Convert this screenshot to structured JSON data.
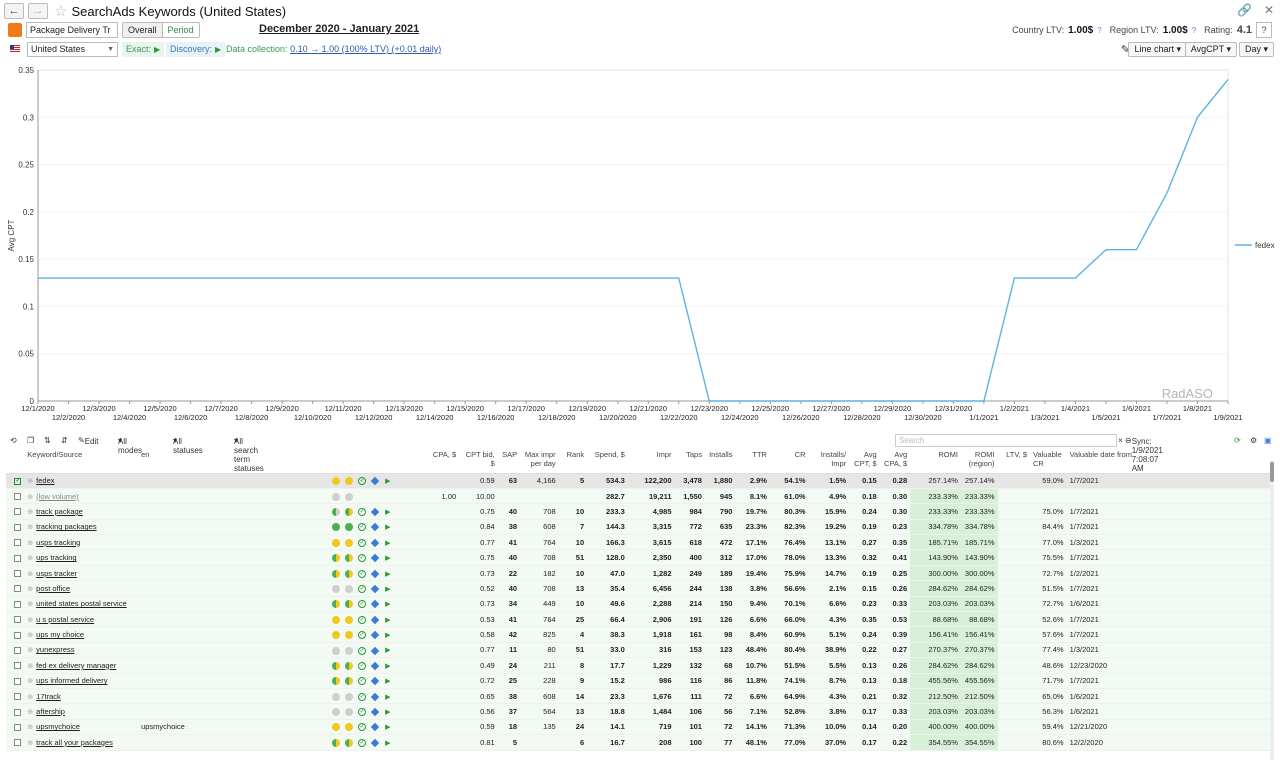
{
  "window": {
    "title": "SearchAds Keywords (United States)"
  },
  "header": {
    "app_selector": "Package Delivery Tr",
    "view_overall": "Overall",
    "view_period": "Period",
    "date_range": "December 2020 - January 2021",
    "country_ltv_label": "Country LTV:",
    "country_ltv_value": "1.00$",
    "region_ltv_label": "Region LTV:",
    "region_ltv_value": "1.00$",
    "rating_label": "Rating:",
    "rating_value": "4.1",
    "help_label": "?",
    "q_mark": "?"
  },
  "filters": {
    "country": "United States",
    "exact_label": "Exact:",
    "discovery_label": "Discovery:",
    "data_collection_label": "Data collection:",
    "data_collection_link": "0.10 → 1.00 (100% LTV) (+0.01 daily)",
    "chart_type": "Line chart",
    "metric": "AvgCPT",
    "granularity": "Day"
  },
  "chart_data": {
    "type": "line",
    "ylabel": "Avg CPT",
    "ylim": [
      0,
      0.35
    ],
    "yticks": [
      "0",
      "0.05",
      "0.1",
      "0.15",
      "0.2",
      "0.25",
      "0.3",
      "0.35"
    ],
    "watermark": "RadASO",
    "x": [
      "12/1/2020",
      "12/2/2020",
      "12/3/2020",
      "12/4/2020",
      "12/5/2020",
      "12/6/2020",
      "12/7/2020",
      "12/8/2020",
      "12/9/2020",
      "12/10/2020",
      "12/11/2020",
      "12/12/2020",
      "12/13/2020",
      "12/14/2020",
      "12/15/2020",
      "12/16/2020",
      "12/17/2020",
      "12/18/2020",
      "12/19/2020",
      "12/20/2020",
      "12/21/2020",
      "12/22/2020",
      "12/23/2020",
      "12/24/2020",
      "12/25/2020",
      "12/26/2020",
      "12/27/2020",
      "12/28/2020",
      "12/29/2020",
      "12/30/2020",
      "12/31/2020",
      "1/1/2021",
      "1/2/2021",
      "1/3/2021",
      "1/4/2021",
      "1/5/2021",
      "1/6/2021",
      "1/7/2021",
      "1/8/2021",
      "1/9/2021"
    ],
    "series": [
      {
        "name": "fedex",
        "color": "#5bb5e0",
        "values": [
          0.13,
          0.13,
          0.13,
          0.13,
          0.13,
          0.13,
          0.13,
          0.13,
          0.13,
          0.13,
          0.13,
          0.13,
          0.13,
          0.13,
          0.13,
          0.13,
          0.13,
          0.13,
          0.13,
          0.13,
          0.13,
          0.13,
          0,
          0,
          0,
          0,
          0,
          0,
          0,
          0,
          0,
          0,
          0.13,
          0.13,
          0.13,
          0.16,
          0.16,
          0.22,
          0.3,
          0.34
        ]
      }
    ]
  },
  "table_toolbar": {
    "edit": "Edit",
    "modes": "All modes",
    "statuses": "All statuses",
    "search_terms": "All search term statuses",
    "search_placeholder": "Search",
    "sync": "Sync: 1/9/2021 7:08:07 AM"
  },
  "table": {
    "columns": [
      "Keyword/Source",
      "en",
      "",
      "CPA, $",
      "CPT bid, $",
      "SAP",
      "Max impr per day",
      "Rank",
      "Spend, $",
      "Impr",
      "Taps",
      "Installs",
      "TTR",
      "CR",
      "Installs/ Impr",
      "Avg CPT, $",
      "Avg CPA, $",
      "ROMI",
      "ROMI (region)",
      "LTV, $",
      "Valuable CR",
      "Valuable date from"
    ],
    "rows": [
      {
        "kw": "fedex",
        "en": "",
        "dots": [
          "y",
          "y"
        ],
        "cpa": "",
        "bid": "0.59",
        "sap": "63",
        "max": "4,166",
        "rank": "5",
        "spend": "534.3",
        "impr": "122,200",
        "taps": "3,478",
        "inst": "1,880",
        "ttr": "2.9%",
        "cr": "54.1%",
        "ii": "1.5%",
        "acpt": "0.15",
        "acpa": "0.28",
        "romi": "257.14%",
        "romir": "257.14%",
        "ltv": "",
        "vcr": "59.0%",
        "vdate": "1/7/2021",
        "sel": true
      },
      {
        "kw": "(low volume)",
        "en": "",
        "dots": [
          "gray",
          "gray"
        ],
        "cpa": "1.00",
        "bid": "10.00",
        "sap": "",
        "max": "",
        "rank": "",
        "spend": "282.7",
        "impr": "19,211",
        "taps": "1,550",
        "inst": "945",
        "ttr": "8.1%",
        "cr": "61.0%",
        "ii": "4.9%",
        "acpt": "0.18",
        "acpa": "0.30",
        "romi": "233.33%",
        "romir": "233.33%",
        "ltv": "",
        "vcr": "",
        "vdate": "",
        "gray": true
      },
      {
        "kw": "track package",
        "en": "",
        "dots": [
          "hg",
          "hy"
        ],
        "cpa": "",
        "bid": "0.75",
        "sap": "40",
        "max": "708",
        "rank": "10",
        "spend": "233.3",
        "impr": "4,985",
        "taps": "984",
        "inst": "790",
        "ttr": "19.7%",
        "cr": "80.3%",
        "ii": "15.9%",
        "acpt": "0.24",
        "acpa": "0.30",
        "romi": "233.33%",
        "romir": "233.33%",
        "ltv": "",
        "vcr": "75.0%",
        "vdate": "1/7/2021"
      },
      {
        "kw": "tracking packages",
        "en": "",
        "dots": [
          "g",
          "g"
        ],
        "cpa": "",
        "bid": "0.84",
        "sap": "38",
        "max": "608",
        "rank": "7",
        "spend": "144.3",
        "impr": "3,315",
        "taps": "772",
        "inst": "635",
        "ttr": "23.3%",
        "cr": "82.3%",
        "ii": "19.2%",
        "acpt": "0.19",
        "acpa": "0.23",
        "romi": "334.78%",
        "romir": "334.78%",
        "ltv": "",
        "vcr": "84.4%",
        "vdate": "1/7/2021"
      },
      {
        "kw": "usps tracking",
        "en": "",
        "dots": [
          "y",
          "y"
        ],
        "cpa": "",
        "bid": "0.77",
        "sap": "41",
        "max": "764",
        "rank": "10",
        "spend": "166.3",
        "impr": "3,615",
        "taps": "618",
        "inst": "472",
        "ttr": "17.1%",
        "cr": "76.4%",
        "ii": "13.1%",
        "acpt": "0.27",
        "acpa": "0.35",
        "romi": "185.71%",
        "romir": "185.71%",
        "ltv": "",
        "vcr": "77.0%",
        "vdate": "1/3/2021"
      },
      {
        "kw": "ups tracking",
        "en": "",
        "dots": [
          "hy",
          "hy"
        ],
        "cpa": "",
        "bid": "0.75",
        "sap": "40",
        "max": "708",
        "rank": "51",
        "spend": "128.0",
        "impr": "2,350",
        "taps": "400",
        "inst": "312",
        "ttr": "17.0%",
        "cr": "78.0%",
        "ii": "13.3%",
        "acpt": "0.32",
        "acpa": "0.41",
        "romi": "143.90%",
        "romir": "143.90%",
        "ltv": "",
        "vcr": "75.5%",
        "vdate": "1/7/2021"
      },
      {
        "kw": "usps tracker",
        "en": "",
        "dots": [
          "hy",
          "hy"
        ],
        "cpa": "",
        "bid": "0.73",
        "sap": "22",
        "max": "182",
        "rank": "10",
        "spend": "47.0",
        "impr": "1,282",
        "taps": "249",
        "inst": "189",
        "ttr": "19.4%",
        "cr": "75.9%",
        "ii": "14.7%",
        "acpt": "0.19",
        "acpa": "0.25",
        "romi": "300.00%",
        "romir": "300.00%",
        "ltv": "",
        "vcr": "72.7%",
        "vdate": "1/2/2021"
      },
      {
        "kw": "post office",
        "en": "",
        "dots": [
          "gray",
          "gray"
        ],
        "cpa": "",
        "bid": "0.52",
        "sap": "40",
        "max": "708",
        "rank": "13",
        "spend": "35.4",
        "impr": "6,456",
        "taps": "244",
        "inst": "138",
        "ttr": "3.8%",
        "cr": "56.6%",
        "ii": "2.1%",
        "acpt": "0.15",
        "acpa": "0.26",
        "romi": "284.62%",
        "romir": "284.62%",
        "ltv": "",
        "vcr": "51.5%",
        "vdate": "1/7/2021"
      },
      {
        "kw": "united states postal service",
        "en": "",
        "dots": [
          "hy",
          "hy"
        ],
        "cpa": "",
        "bid": "0.73",
        "sap": "34",
        "max": "449",
        "rank": "10",
        "spend": "49.6",
        "impr": "2,288",
        "taps": "214",
        "inst": "150",
        "ttr": "9.4%",
        "cr": "70.1%",
        "ii": "6.6%",
        "acpt": "0.23",
        "acpa": "0.33",
        "romi": "203.03%",
        "romir": "203.03%",
        "ltv": "",
        "vcr": "72.7%",
        "vdate": "1/6/2021"
      },
      {
        "kw": "u s postal service",
        "en": "",
        "dots": [
          "y",
          "y"
        ],
        "cpa": "",
        "bid": "0.53",
        "sap": "41",
        "max": "764",
        "rank": "25",
        "spend": "66.4",
        "impr": "2,906",
        "taps": "191",
        "inst": "126",
        "ttr": "6.6%",
        "cr": "66.0%",
        "ii": "4.3%",
        "acpt": "0.35",
        "acpa": "0.53",
        "romi": "88.68%",
        "romir": "88.68%",
        "ltv": "",
        "vcr": "52.6%",
        "vdate": "1/7/2021"
      },
      {
        "kw": "ups my choice",
        "en": "",
        "dots": [
          "y",
          "y"
        ],
        "cpa": "",
        "bid": "0.58",
        "sap": "42",
        "max": "825",
        "rank": "4",
        "spend": "38.3",
        "impr": "1,918",
        "taps": "161",
        "inst": "98",
        "ttr": "8.4%",
        "cr": "60.9%",
        "ii": "5.1%",
        "acpt": "0.24",
        "acpa": "0.39",
        "romi": "156.41%",
        "romir": "156.41%",
        "ltv": "",
        "vcr": "57.6%",
        "vdate": "1/7/2021"
      },
      {
        "kw": "yunexpress",
        "en": "",
        "dots": [
          "gray",
          "gray"
        ],
        "cpa": "",
        "bid": "0.77",
        "sap": "11",
        "max": "80",
        "rank": "51",
        "spend": "33.0",
        "impr": "316",
        "taps": "153",
        "inst": "123",
        "ttr": "48.4%",
        "cr": "80.4%",
        "ii": "38.9%",
        "acpt": "0.22",
        "acpa": "0.27",
        "romi": "270.37%",
        "romir": "270.37%",
        "ltv": "",
        "vcr": "77.4%",
        "vdate": "1/3/2021"
      },
      {
        "kw": "fed ex delivery manager",
        "en": "",
        "dots": [
          "hy",
          "hy"
        ],
        "cpa": "",
        "bid": "0.49",
        "sap": "24",
        "max": "211",
        "rank": "8",
        "spend": "17.7",
        "impr": "1,229",
        "taps": "132",
        "inst": "68",
        "ttr": "10.7%",
        "cr": "51.5%",
        "ii": "5.5%",
        "acpt": "0.13",
        "acpa": "0.26",
        "romi": "284.62%",
        "romir": "284.62%",
        "ltv": "",
        "vcr": "48.6%",
        "vdate": "12/23/2020"
      },
      {
        "kw": "ups informed delivery",
        "en": "",
        "dots": [
          "hy",
          "hy"
        ],
        "cpa": "",
        "bid": "0.72",
        "sap": "25",
        "max": "228",
        "rank": "9",
        "spend": "15.2",
        "impr": "986",
        "taps": "116",
        "inst": "86",
        "ttr": "11.8%",
        "cr": "74.1%",
        "ii": "8.7%",
        "acpt": "0.13",
        "acpa": "0.18",
        "romi": "455.56%",
        "romir": "455.56%",
        "ltv": "",
        "vcr": "71.7%",
        "vdate": "1/7/2021"
      },
      {
        "kw": "17track",
        "en": "",
        "dots": [
          "gray",
          "gray"
        ],
        "cpa": "",
        "bid": "0.65",
        "sap": "38",
        "max": "608",
        "rank": "14",
        "spend": "23.3",
        "impr": "1,676",
        "taps": "111",
        "inst": "72",
        "ttr": "6.6%",
        "cr": "64.9%",
        "ii": "4.3%",
        "acpt": "0.21",
        "acpa": "0.32",
        "romi": "212.50%",
        "romir": "212.50%",
        "ltv": "",
        "vcr": "65.0%",
        "vdate": "1/6/2021"
      },
      {
        "kw": "aftership",
        "en": "",
        "dots": [
          "gray",
          "gray"
        ],
        "cpa": "",
        "bid": "0.56",
        "sap": "37",
        "max": "564",
        "rank": "13",
        "spend": "18.8",
        "impr": "1,484",
        "taps": "106",
        "inst": "56",
        "ttr": "7.1%",
        "cr": "52.8%",
        "ii": "3.8%",
        "acpt": "0.17",
        "acpa": "0.33",
        "romi": "203.03%",
        "romir": "203.03%",
        "ltv": "",
        "vcr": "56.3%",
        "vdate": "1/6/2021"
      },
      {
        "kw": "upsmychoice",
        "en": "upsmychoice",
        "dots": [
          "y",
          "y"
        ],
        "cpa": "",
        "bid": "0.59",
        "sap": "18",
        "max": "135",
        "rank": "24",
        "spend": "14.1",
        "impr": "719",
        "taps": "101",
        "inst": "72",
        "ttr": "14.1%",
        "cr": "71.3%",
        "ii": "10.0%",
        "acpt": "0.14",
        "acpa": "0.20",
        "romi": "400.00%",
        "romir": "400.00%",
        "ltv": "",
        "vcr": "59.4%",
        "vdate": "12/21/2020"
      },
      {
        "kw": "track all your packages",
        "en": "",
        "dots": [
          "hy",
          "hy"
        ],
        "cpa": "",
        "bid": "0.81",
        "sap": "5",
        "max": "",
        "rank": "6",
        "spend": "16.7",
        "impr": "208",
        "taps": "100",
        "inst": "77",
        "ttr": "48.1%",
        "cr": "77.0%",
        "ii": "37.0%",
        "acpt": "0.17",
        "acpa": "0.22",
        "romi": "354.55%",
        "romir": "354.55%",
        "ltv": "",
        "vcr": "80.6%",
        "vdate": "12/2/2020"
      }
    ]
  }
}
